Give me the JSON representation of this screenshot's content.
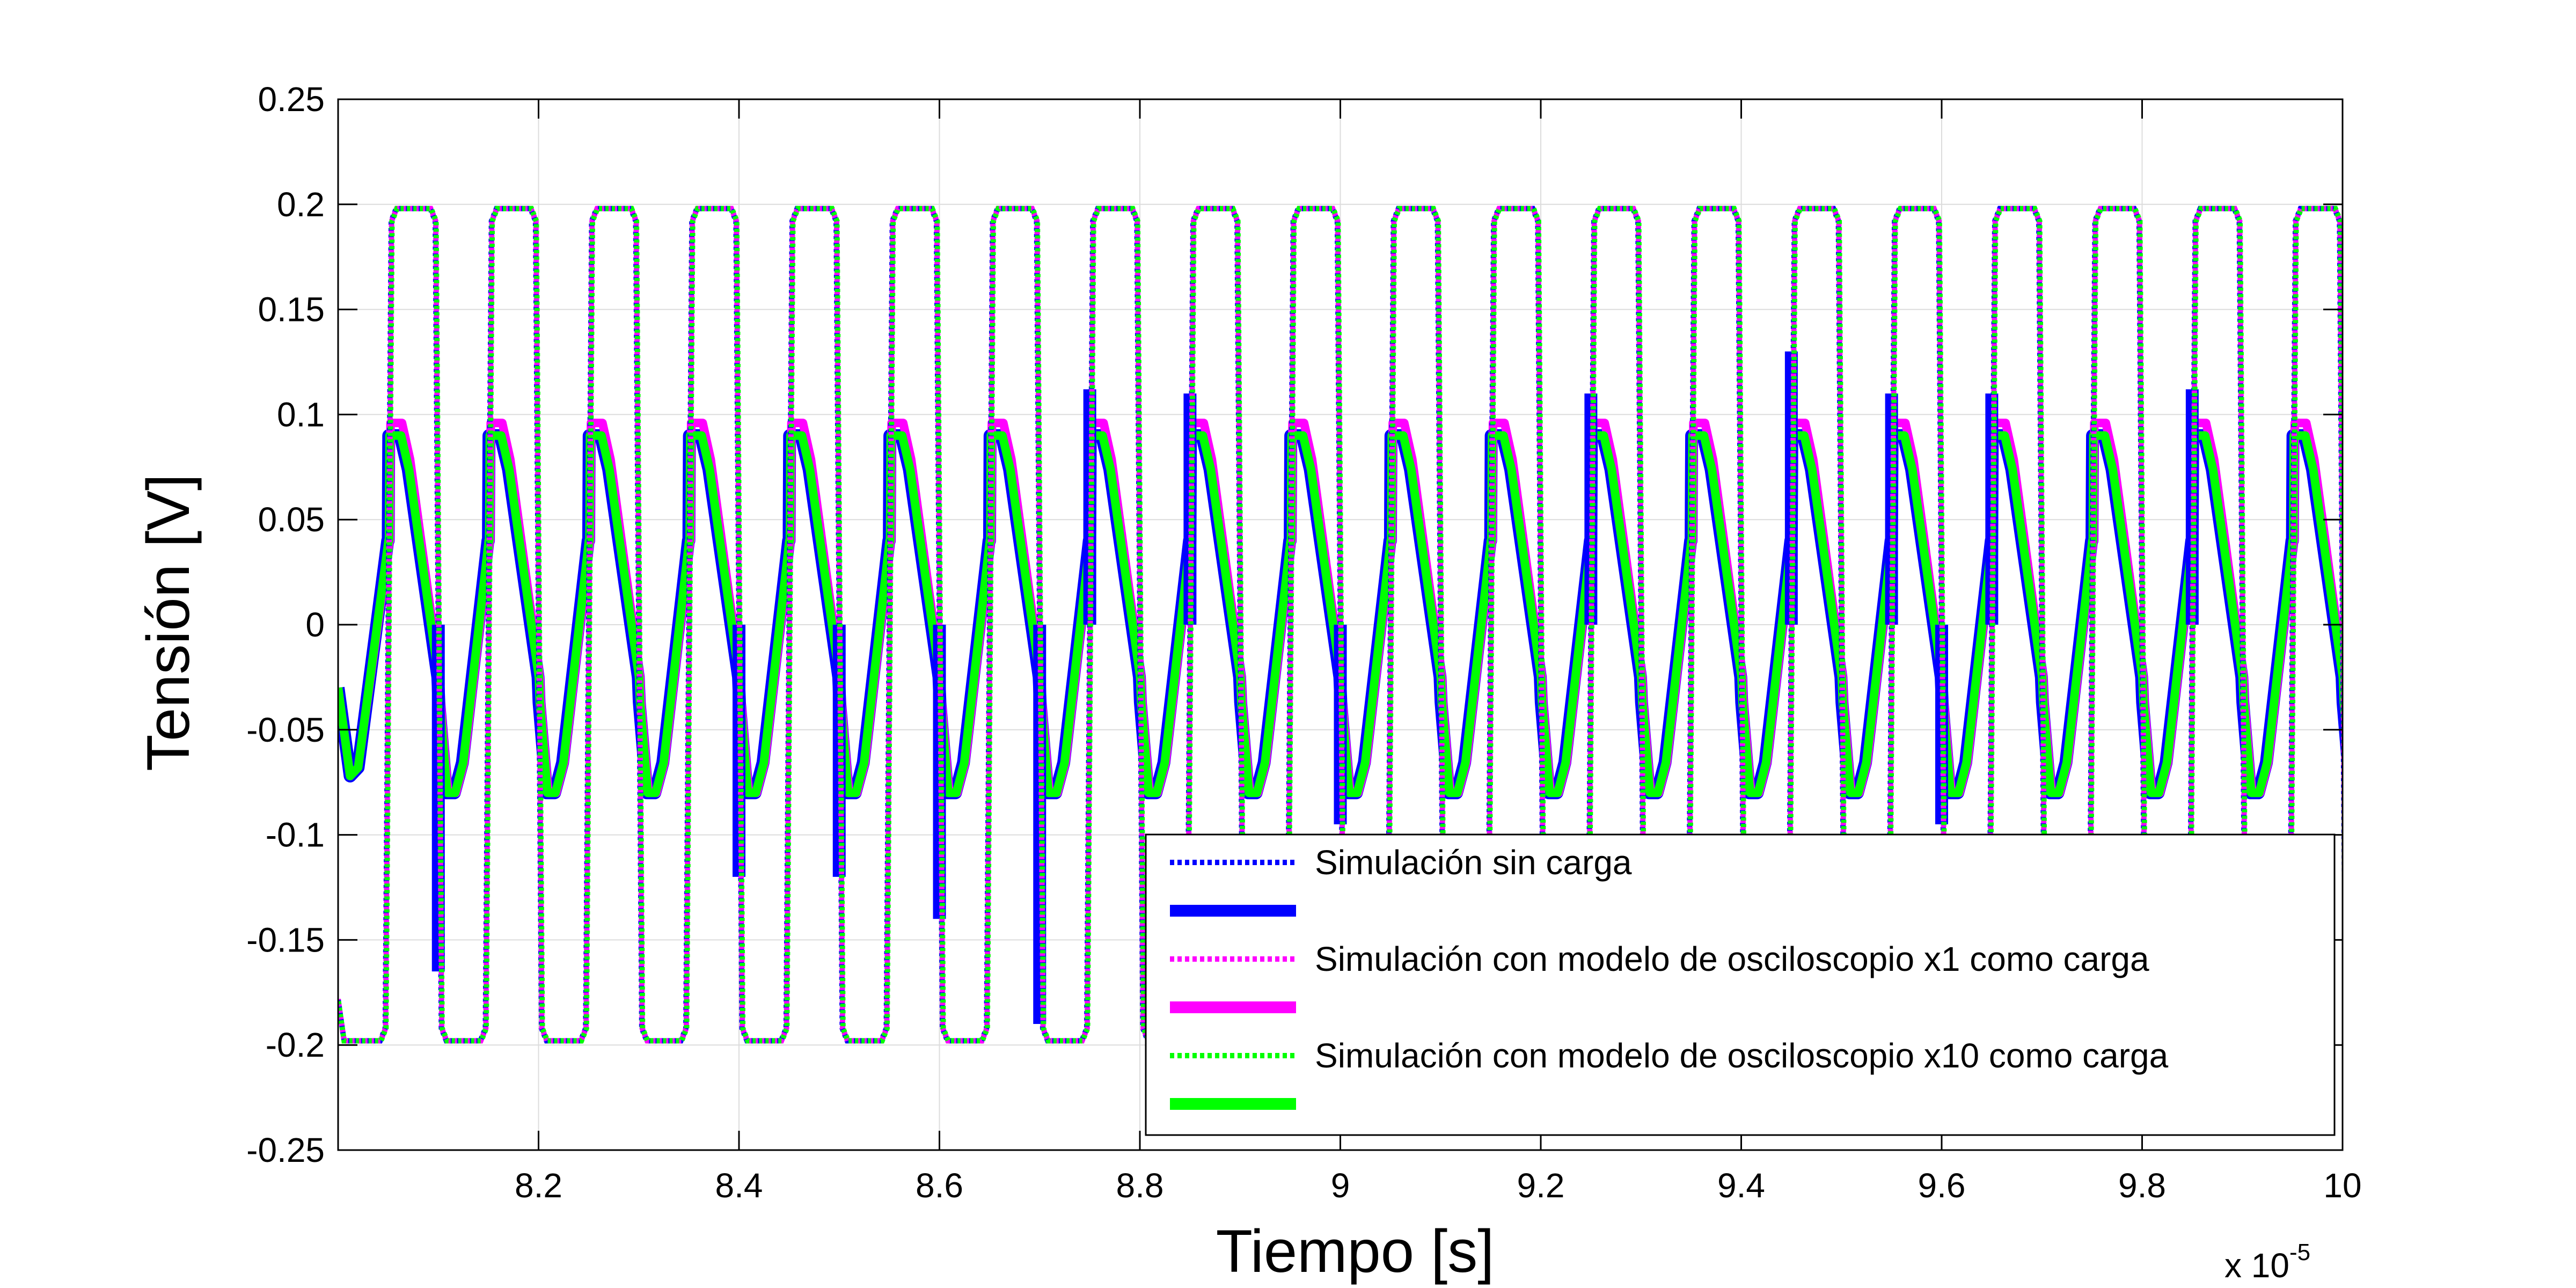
{
  "chart_data": {
    "type": "line",
    "title": "",
    "xlabel": "Tiempo [s]",
    "ylabel": "Tensión [V]",
    "x_multiplier_label": "x 10",
    "x_multiplier_exponent": "-5",
    "xlim": [
      8.0,
      10.0
    ],
    "ylim": [
      -0.25,
      0.25
    ],
    "x_ticks": [
      8.2,
      8.4,
      8.6,
      8.8,
      9.0,
      9.2,
      9.4,
      9.6,
      9.8,
      10.0
    ],
    "x_tick_labels": [
      "8.2",
      "8.4",
      "8.6",
      "8.8",
      "9",
      "9.2",
      "9.4",
      "9.6",
      "9.8",
      "10"
    ],
    "y_ticks": [
      0.25,
      0.2,
      0.15,
      0.1,
      0.05,
      0,
      -0.05,
      -0.1,
      -0.15,
      -0.2,
      -0.25
    ],
    "y_tick_labels": [
      "0.25",
      "0.2",
      "0.15",
      "0.1",
      "0.05",
      "0",
      "-0.05",
      "-0.1",
      "-0.15",
      "-0.2",
      "-0.25"
    ],
    "grid": true,
    "legend_position": "bottom-right",
    "period": 0.1,
    "square_wave": {
      "amplitude": 0.198,
      "first_rise_x": 8.05,
      "first_fall_x": 8.1
    },
    "triangle_wave": {
      "peak": 0.09,
      "trough": -0.08,
      "jump_low": -0.025,
      "jump_high": 0.04,
      "first_jump_x": 8.05
    },
    "series": [
      {
        "name": "Simulación sin carga",
        "style": "dotted",
        "color": "#0000ff",
        "kind": "square"
      },
      {
        "name": "",
        "style": "solid-thick",
        "color": "#0000ff",
        "kind": "triangle"
      },
      {
        "name": "Simulación con modelo de osciloscopio x1 como carga",
        "style": "dotted",
        "color": "#ff00ff",
        "kind": "square"
      },
      {
        "name": "",
        "style": "solid-thick",
        "color": "#ff00ff",
        "kind": "triangle"
      },
      {
        "name": "Simulación con modelo de osciloscopio x10 como carga",
        "style": "dotted",
        "color": "#00ff00",
        "kind": "square"
      },
      {
        "name": "",
        "style": "solid-thick",
        "color": "#00ff00",
        "kind": "triangle"
      }
    ],
    "spikes": [
      {
        "x": 8.1,
        "y": -0.165
      },
      {
        "x": 8.4,
        "y": -0.12
      },
      {
        "x": 8.5,
        "y": -0.12
      },
      {
        "x": 8.6,
        "y": -0.14
      },
      {
        "x": 8.7,
        "y": -0.19
      },
      {
        "x": 8.75,
        "y": 0.112
      },
      {
        "x": 8.85,
        "y": 0.11
      },
      {
        "x": 9.0,
        "y": -0.095
      },
      {
        "x": 9.25,
        "y": 0.11
      },
      {
        "x": 9.45,
        "y": 0.13
      },
      {
        "x": 9.55,
        "y": 0.11
      },
      {
        "x": 9.6,
        "y": -0.095
      },
      {
        "x": 9.65,
        "y": 0.11
      },
      {
        "x": 9.85,
        "y": 0.112
      }
    ]
  }
}
